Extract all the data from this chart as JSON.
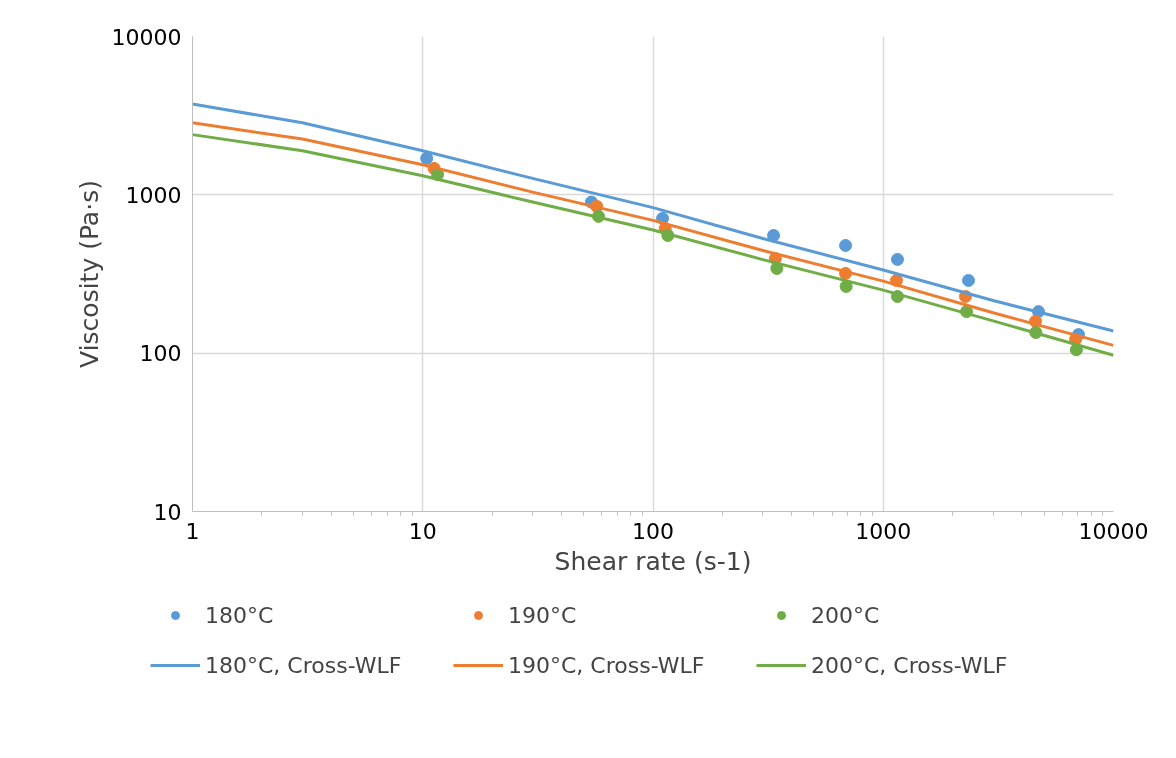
{
  "chart_data": {
    "type": "scatter",
    "xlabel": "Shear rate (s-1)",
    "ylabel": "Viscosity (Pa·s)",
    "log": "xy",
    "grid": true,
    "legend": "bottom",
    "xlim": [
      1,
      10000
    ],
    "xticks": [
      1,
      10,
      100,
      1000,
      10000
    ],
    "ylim": [
      10,
      10000
    ],
    "yticks": [
      10,
      100,
      1000,
      10000
    ],
    "series": [
      {
        "name": "180°C",
        "marker": "circle",
        "color": "#5b9bd5",
        "x": [
          10.4,
          54,
          110,
          334,
          686,
          1153,
          2345,
          4723,
          7047
        ],
        "values": [
          1700,
          900,
          710,
          554,
          479,
          391,
          288,
          183,
          131
        ]
      },
      {
        "name": "190°C",
        "marker": "circle",
        "color": "#ed7d31",
        "x": [
          11.2,
          57,
          113,
          340,
          686,
          1142,
          2276,
          4584,
          6840
        ],
        "values": [
          1468,
          845,
          613,
          396,
          319,
          288,
          228,
          159,
          122
        ]
      },
      {
        "name": "200°C",
        "marker": "circle",
        "color": "#70ad47",
        "x": [
          11.6,
          58,
          116,
          345,
          690,
          1153,
          2300,
          4600,
          6900
        ],
        "values": [
          1345,
          731,
          554,
          343,
          264,
          228,
          183,
          135,
          105
        ]
      },
      {
        "name": "180°C, Cross-WLF",
        "type": "line",
        "line_style": "solid",
        "color": "#5b9bd5",
        "x": [
          1,
          3,
          10,
          30,
          100,
          300,
          1000,
          3000,
          10000
        ],
        "values": [
          3750,
          2850,
          1900,
          1270,
          830,
          530,
          335,
          215,
          138
        ]
      },
      {
        "name": "190°C, Cross-WLF",
        "type": "line",
        "line_style": "solid",
        "color": "#ed7d31",
        "x": [
          1,
          3,
          10,
          30,
          100,
          300,
          1000,
          3000,
          10000
        ],
        "values": [
          2850,
          2250,
          1550,
          1040,
          690,
          445,
          285,
          180,
          112
        ]
      },
      {
        "name": "200°C, Cross-WLF",
        "type": "line",
        "line_style": "solid",
        "color": "#70ad47",
        "x": [
          1,
          3,
          10,
          30,
          100,
          300,
          1000,
          3000,
          10000
        ],
        "values": [
          2400,
          1900,
          1320,
          900,
          600,
          390,
          250,
          160,
          97
        ]
      }
    ]
  }
}
